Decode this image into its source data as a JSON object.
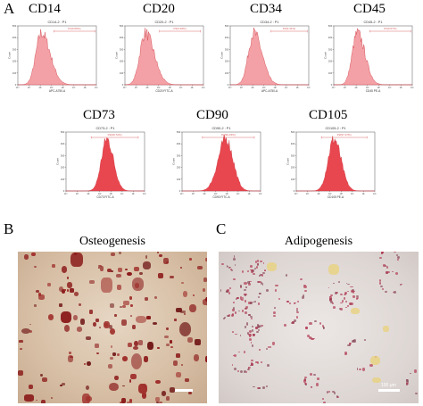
{
  "panels": {
    "a": "A",
    "b": "B",
    "c": "C"
  },
  "colors": {
    "fill": "#e8474f",
    "fill_light": "#f3a1a6",
    "gate": "#d95a5a"
  },
  "flow": [
    {
      "marker": "CD14",
      "plot_title": "CD14-2 : P1",
      "xaxis": "APC-A750-A",
      "ylabel": "Count",
      "gate": "P2(0.66%)"
    },
    {
      "marker": "CD20",
      "plot_title": "CD20-2 : P1",
      "xaxis": "CD20 FITC-A",
      "ylabel": "Count",
      "gate": "P2(3.46%)"
    },
    {
      "marker": "CD34",
      "plot_title": "CD34-2 : P1",
      "xaxis": "APC-A750-A",
      "ylabel": "Count",
      "gate": "P2(0.41%)"
    },
    {
      "marker": "CD45",
      "plot_title": "CD45-2 : P1",
      "xaxis": "CD45 PE-A",
      "ylabel": "Count",
      "gate": "P2(0.67%)"
    },
    {
      "marker": "CD73",
      "plot_title": "CD73-2 : P1",
      "xaxis": "CD73 FITC-A",
      "ylabel": "Count",
      "gate": "P2(99.72%)"
    },
    {
      "marker": "CD90",
      "plot_title": "CD90-2 : P1",
      "xaxis": "CD90 FITC-A",
      "ylabel": "Count",
      "gate": "P2(99.15%)"
    },
    {
      "marker": "CD105",
      "plot_title": "CD105-2 : P1",
      "xaxis": "CD105 PE-A",
      "ylabel": "Count",
      "gate": "P2(97.27%)"
    }
  ],
  "micro": {
    "osteo_title": "Osteogenesis",
    "adipo_title": "Adipogenesis",
    "scale_text": "100 μm"
  }
}
